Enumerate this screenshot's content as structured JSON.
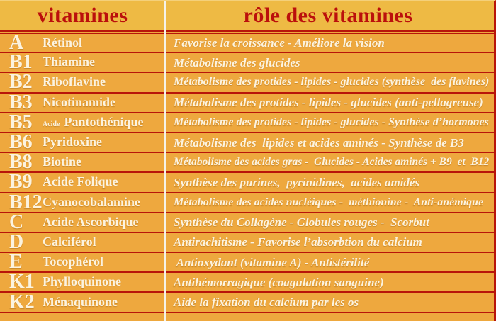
{
  "table": {
    "header": {
      "col1": "vitamines",
      "col2": "rôle des vitamines"
    },
    "rows": [
      {
        "letter": "A",
        "name": "Rétinol",
        "role": "Favorise la croissance - Améliore la vision"
      },
      {
        "letter": "B1",
        "name": "Thiamine",
        "role": "Métabolisme des glucides"
      },
      {
        "letter": "B2",
        "name": "Riboflavine",
        "role": "Métabolisme des protides - lipides - glucides (synthèse  des flavines)"
      },
      {
        "letter": "B3",
        "name": "Nicotinamide",
        "role": "Métabolisme des protides - lipides - glucides (anti-pellagreuse)"
      },
      {
        "letter": "B5",
        "name_prefix": "Acide",
        "name": "Pantothénique",
        "role": "Métabolisme des protides - lipides - glucides - Synthèse d’hormones"
      },
      {
        "letter": "B6",
        "name": "Pyridoxine",
        "role": "Métabolisme des  lipides et acides aminés - Synthèse de B3"
      },
      {
        "letter": "B8",
        "name": "Biotine",
        "role": "Métabolisme des acides gras -  Glucides - Acides aminés + B9  et  B12"
      },
      {
        "letter": "B9",
        "name": "Acide Folique",
        "role": "Synthèse des purines,  pyrinidines,  acides amidés"
      },
      {
        "letter": "B12",
        "name": "Cyanocobalamine",
        "role": "Métabolisme des acides nucléiques -  méthionine -  Anti-anémique"
      },
      {
        "letter": "C",
        "name": "Acide Ascorbique",
        "role": "Synthèse du Collagène - Globules rouges -  Scorbut"
      },
      {
        "letter": "D",
        "name": "Calciférol",
        "role": "Antirachitisme - Favorise l’absorbtion du calcium"
      },
      {
        "letter": "E",
        "name": "Tocophérol",
        "role": " Antioxydant (vitamine A) - Antistérilité"
      },
      {
        "letter": "K1",
        "name": "Phylloquinone",
        "role": "Antihémorragique (coagulation sanguine)"
      },
      {
        "letter": "K2",
        "name": "Ménaquinone",
        "role": "Aide la fixation du calcium par les os"
      }
    ]
  },
  "colors": {
    "header_bg": "#eeba44",
    "row_bg": "#eea83e",
    "line_red": "#b8150a",
    "header_text": "#bb100c",
    "text_cream": "#fcf3df",
    "divider": "#f5f2e8"
  }
}
